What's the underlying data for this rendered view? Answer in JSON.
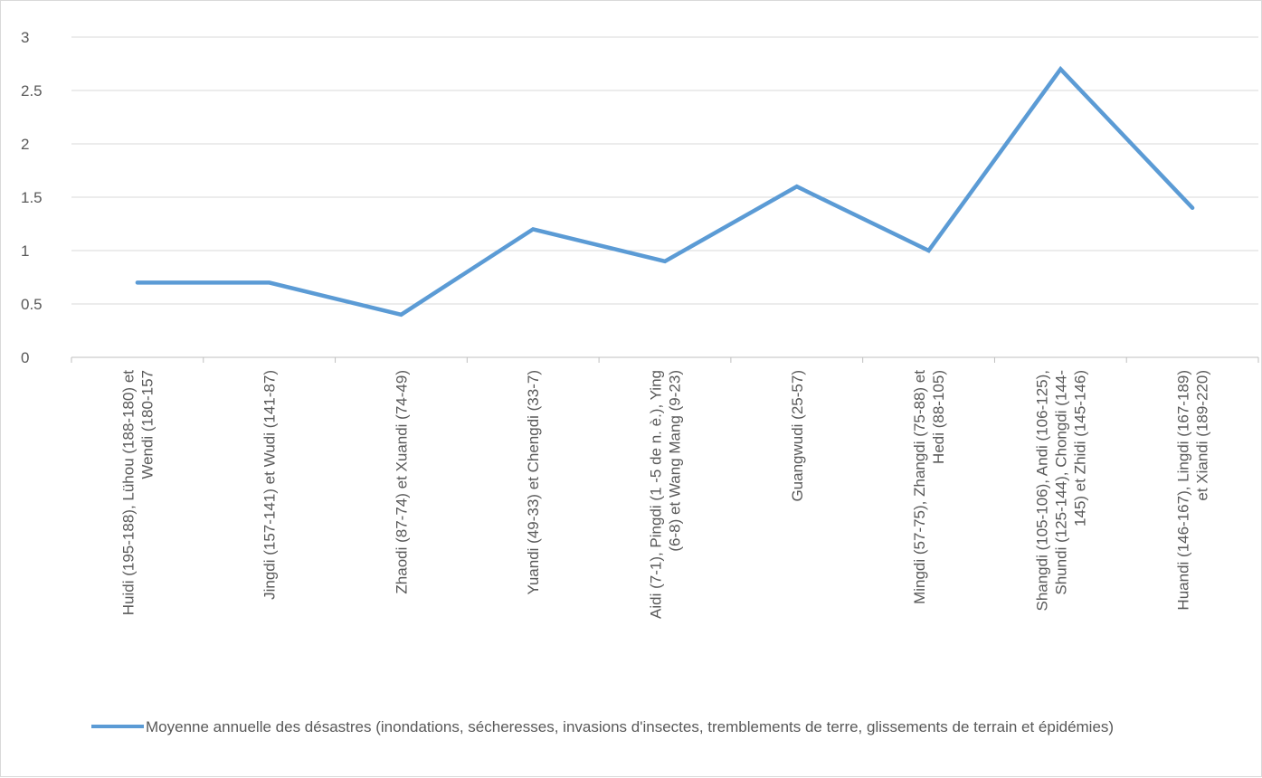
{
  "chart_data": {
    "type": "line",
    "title": "",
    "xlabel": "",
    "ylabel": "",
    "ylim": [
      0,
      3
    ],
    "yticks": [
      "0",
      "0.5",
      "1",
      "1.5",
      "2",
      "2.5",
      "3"
    ],
    "grid": true,
    "legend_position": "bottom",
    "categories": [
      [
        "Huidi (195-188), Lühou (188-180) et",
        "Wendi (180-157"
      ],
      [
        "Jingdi (157-141) et Wudi (141-87)"
      ],
      [
        "Zhaodi (87-74) et Xuandi (74-49)"
      ],
      [
        "Yuandi (49-33) et Chengdi (33-7)"
      ],
      [
        "Aidi (7-1), Pingdi (1 -5 de n. è.), Ying",
        "(6-8) et Wang Mang (9-23)"
      ],
      [
        "Guangwudi (25-57)"
      ],
      [
        "Mingdi (57-75), Zhangdi (75-88) et",
        "Hedi (88-105)"
      ],
      [
        "Shangdi (105-106), Andi (106-125),",
        "Shundi (125-144), Chongdi (144-",
        "145) et Zhidi (145-146)"
      ],
      [
        "Huandi (146-167), Lingdi (167-189)",
        "et Xiandi (189-220)"
      ]
    ],
    "series": [
      {
        "name": "Moyenne annuelle des désastres (inondations, sécheresses, invasions d'insectes, tremblements de terre, glissements de terrain et épidémies)",
        "color": "#5b9bd5",
        "values": [
          0.7,
          0.7,
          0.4,
          1.2,
          0.9,
          1.6,
          1.0,
          2.7,
          1.4
        ]
      }
    ]
  }
}
